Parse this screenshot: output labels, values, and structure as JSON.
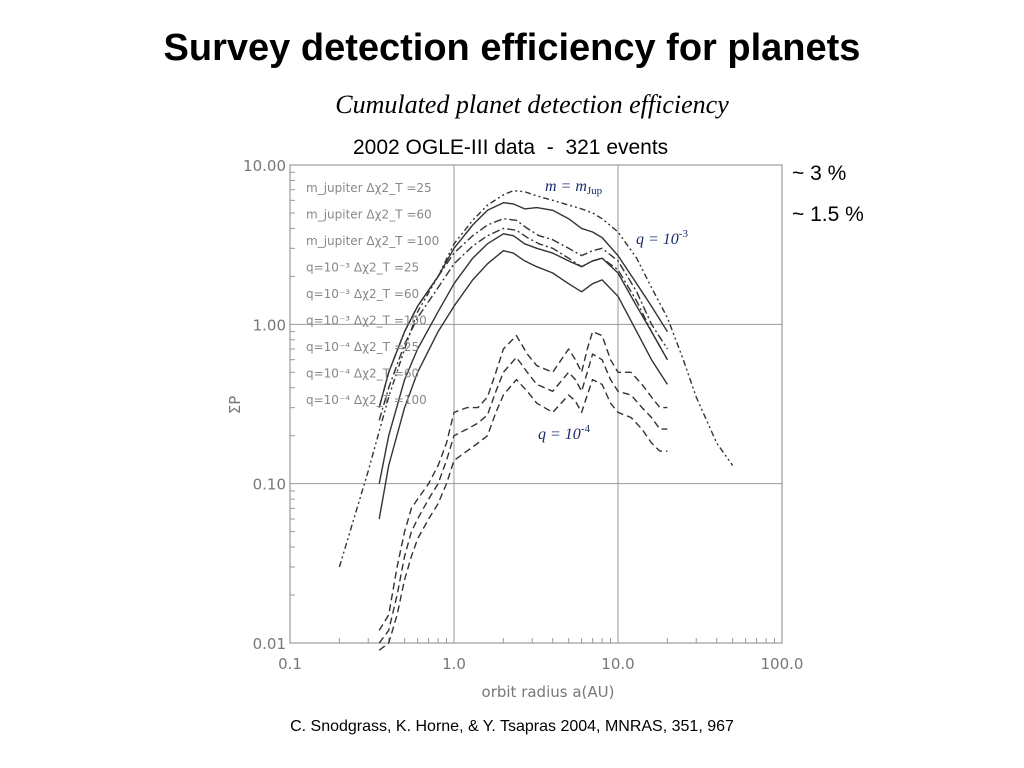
{
  "slide": {
    "title": "Survey detection efficiency for planets",
    "subtitle": "Cumulated planet detection efficiency",
    "data_caption": "2002 OGLE-III data  -  321 events",
    "side_note_3": "~ 3 %",
    "side_note_15": "~ 1.5 %",
    "citation": "C. Snodgrass, K. Horne, & Y. Tsapras 2004, MNRAS, 351, 967"
  },
  "chart_data": {
    "type": "line",
    "xscale": "log",
    "yscale": "log",
    "xlim": [
      0.1,
      100.0
    ],
    "ylim": [
      0.01,
      10.0
    ],
    "xlabel": "orbit radius a(AU)",
    "ylabel": "ΣP",
    "xticks": [
      "0.1",
      "1.0",
      "10.0",
      "100.0"
    ],
    "yticks": [
      "10.00",
      "1.00",
      "0.10",
      "0.01"
    ],
    "grid": true,
    "legend": [
      "m_jupiter  Δχ2_T =25",
      "m_jupiter  Δχ2_T =60",
      "m_jupiter  Δχ2_T =100",
      "q=10⁻³  Δχ2_T =25",
      "q=10⁻³  Δχ2_T =60",
      "q=10⁻³  Δχ2_T =100",
      "q=10⁻⁴  Δχ2_T =25",
      "q=10⁻⁴  Δχ2_T =60",
      "q=10⁻⁴  Δχ2_T =100"
    ],
    "annotations": {
      "mjup": "m = m",
      "mjup_sub": "Jup",
      "q3": "q = 10",
      "q3_exp": "-3",
      "q4": "q = 10",
      "q4_exp": "-4"
    },
    "series": [
      {
        "name": "m_jupiter Δχ2_T=25",
        "style": "dashdotdot",
        "x": [
          0.2,
          0.3,
          0.4,
          0.5,
          0.6,
          0.8,
          1.0,
          1.3,
          1.6,
          2.0,
          2.3,
          2.7,
          3.2,
          4.0,
          5.0,
          6.0,
          7.0,
          8.0,
          10.0,
          13.0,
          16.0,
          20.0,
          25.0,
          30.0,
          40.0,
          50.0
        ],
        "y": [
          0.03,
          0.12,
          0.35,
          0.7,
          1.2,
          2.0,
          3.2,
          4.5,
          5.6,
          6.5,
          6.9,
          6.8,
          6.4,
          6.0,
          5.6,
          5.3,
          5.0,
          4.6,
          3.8,
          2.6,
          1.7,
          1.1,
          0.6,
          0.35,
          0.18,
          0.13
        ]
      },
      {
        "name": "m_jupiter Δχ2_T=60",
        "style": "dashdot",
        "x": [
          0.35,
          0.4,
          0.5,
          0.6,
          0.8,
          1.0,
          1.3,
          1.6,
          2.0,
          2.4,
          2.8,
          3.3,
          4.0,
          5.0,
          6.0,
          7.0,
          8.0,
          10.0,
          13.0,
          16.0,
          20.0
        ],
        "y": [
          0.3,
          0.5,
          0.9,
          1.3,
          2.0,
          2.8,
          3.6,
          4.2,
          4.6,
          4.5,
          4.0,
          3.6,
          3.4,
          3.0,
          2.7,
          2.9,
          3.0,
          2.5,
          1.6,
          1.0,
          0.7
        ]
      },
      {
        "name": "m_jupiter Δχ2_T=100",
        "style": "dashdot",
        "x": [
          0.35,
          0.4,
          0.5,
          0.6,
          0.8,
          1.0,
          1.3,
          1.6,
          2.0,
          2.4,
          2.8,
          3.3,
          4.0,
          5.0,
          6.0,
          7.0,
          8.0,
          10.0,
          13.0,
          16.0,
          20.0
        ],
        "y": [
          0.25,
          0.4,
          0.75,
          1.1,
          1.7,
          2.4,
          3.1,
          3.6,
          4.0,
          3.9,
          3.5,
          3.2,
          3.0,
          2.6,
          2.3,
          2.5,
          2.6,
          2.2,
          1.4,
          0.9,
          0.6
        ]
      },
      {
        "name": "q=10⁻³ Δχ2_T=25",
        "style": "solid",
        "x": [
          0.35,
          0.4,
          0.5,
          0.6,
          0.8,
          1.0,
          1.3,
          1.6,
          2.0,
          2.3,
          2.7,
          3.2,
          4.0,
          5.0,
          6.0,
          7.0,
          8.0,
          10.0,
          13.0,
          16.0,
          20.0
        ],
        "y": [
          0.3,
          0.5,
          0.9,
          1.3,
          2.0,
          3.0,
          4.2,
          5.2,
          5.8,
          5.7,
          5.3,
          5.4,
          5.2,
          4.6,
          4.0,
          3.8,
          3.5,
          2.7,
          1.8,
          1.3,
          0.9
        ]
      },
      {
        "name": "q=10⁻³ Δχ2_T=60",
        "style": "solid",
        "x": [
          0.35,
          0.4,
          0.5,
          0.6,
          0.8,
          1.0,
          1.3,
          1.6,
          2.0,
          2.3,
          2.7,
          3.2,
          4.0,
          5.0,
          6.0,
          7.0,
          8.0,
          10.0,
          13.0,
          16.0,
          20.0
        ],
        "y": [
          0.1,
          0.2,
          0.45,
          0.7,
          1.2,
          1.8,
          2.6,
          3.2,
          3.7,
          3.6,
          3.2,
          3.0,
          2.8,
          2.5,
          2.3,
          2.5,
          2.6,
          2.1,
          1.3,
          0.9,
          0.6
        ]
      },
      {
        "name": "q=10⁻³ Δχ2_T=100",
        "style": "solid",
        "x": [
          0.35,
          0.4,
          0.5,
          0.6,
          0.8,
          1.0,
          1.3,
          1.6,
          2.0,
          2.3,
          2.7,
          3.2,
          4.0,
          5.0,
          6.0,
          7.0,
          8.0,
          10.0,
          13.0,
          16.0,
          20.0
        ],
        "y": [
          0.06,
          0.13,
          0.3,
          0.5,
          0.9,
          1.3,
          1.9,
          2.4,
          2.9,
          2.8,
          2.5,
          2.3,
          2.1,
          1.8,
          1.6,
          1.8,
          1.9,
          1.5,
          0.9,
          0.6,
          0.42
        ]
      },
      {
        "name": "q=10⁻⁴ Δχ2_T=25",
        "style": "dashed",
        "x": [
          0.35,
          0.4,
          0.45,
          0.5,
          0.55,
          0.6,
          0.7,
          0.8,
          0.9,
          1.0,
          1.2,
          1.4,
          1.6,
          1.8,
          2.0,
          2.4,
          2.8,
          3.2,
          4.0,
          5.0,
          5.5,
          6.0,
          6.5,
          7.0,
          8.0,
          9.0,
          10.0,
          12.0,
          14.0,
          16.0,
          18.0,
          20.0
        ],
        "y": [
          0.012,
          0.015,
          0.03,
          0.05,
          0.07,
          0.08,
          0.1,
          0.13,
          0.18,
          0.28,
          0.3,
          0.3,
          0.35,
          0.5,
          0.7,
          0.85,
          0.65,
          0.55,
          0.5,
          0.7,
          0.6,
          0.5,
          0.7,
          0.9,
          0.85,
          0.6,
          0.5,
          0.5,
          0.42,
          0.35,
          0.3,
          0.3
        ]
      },
      {
        "name": "q=10⁻⁴ Δχ2_T=60",
        "style": "dashed",
        "x": [
          0.35,
          0.4,
          0.45,
          0.5,
          0.55,
          0.6,
          0.7,
          0.8,
          0.9,
          1.0,
          1.2,
          1.4,
          1.6,
          1.8,
          2.0,
          2.4,
          2.8,
          3.2,
          4.0,
          5.0,
          5.5,
          6.0,
          6.5,
          7.0,
          8.0,
          9.0,
          10.0,
          12.0,
          14.0,
          16.0,
          18.0,
          20.0
        ],
        "y": [
          0.01,
          0.012,
          0.02,
          0.035,
          0.05,
          0.06,
          0.08,
          0.1,
          0.14,
          0.2,
          0.22,
          0.24,
          0.27,
          0.38,
          0.5,
          0.62,
          0.5,
          0.42,
          0.38,
          0.5,
          0.45,
          0.38,
          0.5,
          0.65,
          0.6,
          0.45,
          0.38,
          0.36,
          0.3,
          0.26,
          0.22,
          0.22
        ]
      },
      {
        "name": "q=10⁻⁴ Δχ2_T=100",
        "style": "dashed",
        "x": [
          0.35,
          0.4,
          0.45,
          0.5,
          0.55,
          0.6,
          0.7,
          0.8,
          0.9,
          1.0,
          1.2,
          1.4,
          1.6,
          1.8,
          2.0,
          2.4,
          2.8,
          3.2,
          4.0,
          5.0,
          5.5,
          6.0,
          6.5,
          7.0,
          8.0,
          9.0,
          10.0,
          12.0,
          14.0,
          16.0,
          18.0,
          20.0
        ],
        "y": [
          0.009,
          0.01,
          0.015,
          0.025,
          0.035,
          0.045,
          0.06,
          0.075,
          0.1,
          0.14,
          0.16,
          0.18,
          0.2,
          0.28,
          0.36,
          0.45,
          0.38,
          0.32,
          0.28,
          0.36,
          0.33,
          0.28,
          0.36,
          0.45,
          0.42,
          0.32,
          0.28,
          0.26,
          0.22,
          0.18,
          0.16,
          0.16
        ]
      }
    ]
  }
}
